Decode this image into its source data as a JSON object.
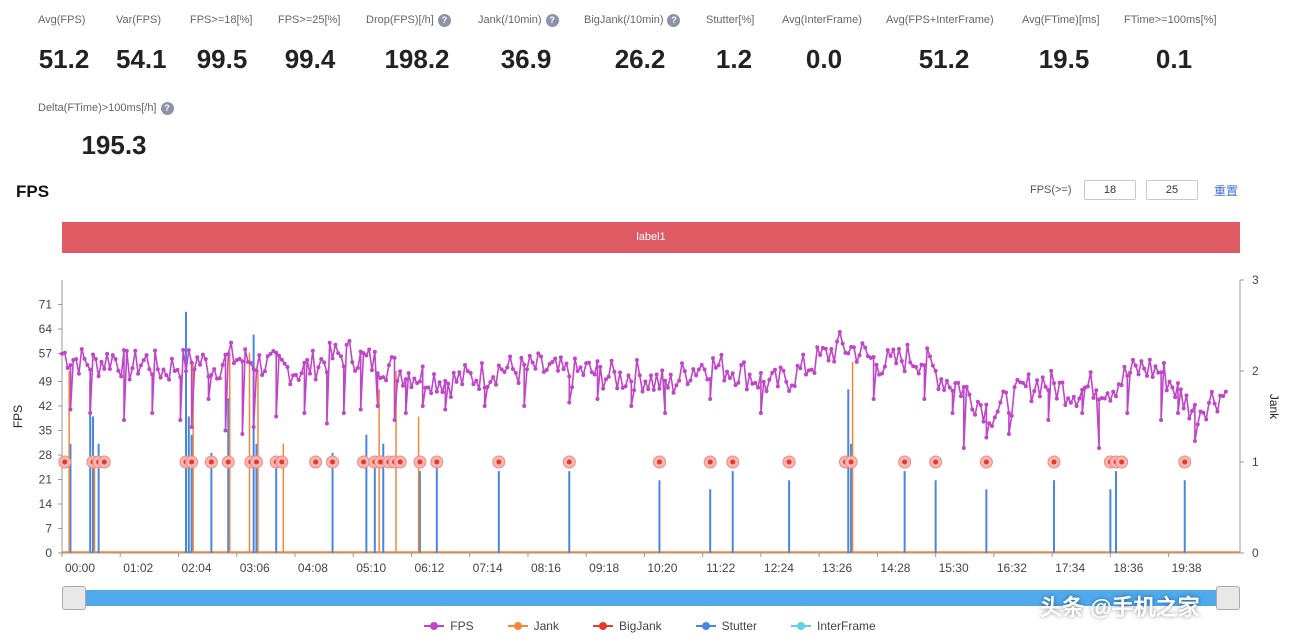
{
  "metrics": [
    {
      "label": "Avg(FPS)",
      "value": "51.2",
      "help": false
    },
    {
      "label": "Var(FPS)",
      "value": "54.1",
      "help": false
    },
    {
      "label": "FPS>=18[%]",
      "value": "99.5",
      "help": false
    },
    {
      "label": "FPS>=25[%]",
      "value": "99.4",
      "help": false
    },
    {
      "label": "Drop(FPS)[/h]",
      "value": "198.2",
      "help": true
    },
    {
      "label": "Jank(/10min)",
      "value": "36.9",
      "help": true
    },
    {
      "label": "BigJank(/10min)",
      "value": "26.2",
      "help": true
    },
    {
      "label": "Stutter[%]",
      "value": "1.2",
      "help": false
    },
    {
      "label": "Avg(InterFrame)",
      "value": "0.0",
      "help": false
    },
    {
      "label": "Avg(FPS+InterFrame)",
      "value": "51.2",
      "help": false
    },
    {
      "label": "Avg(FTime)[ms]",
      "value": "19.5",
      "help": false
    },
    {
      "label": "FTime>=100ms[%]",
      "value": "0.1",
      "help": false
    },
    {
      "label": "Delta(FTime)>100ms[/h]",
      "value": "195.3",
      "help": true
    }
  ],
  "help_glyph": "?",
  "chart_section": {
    "title": "FPS",
    "threshold_label": "FPS(>=)",
    "threshold_values": [
      "18",
      "25"
    ],
    "reset_label": "重置",
    "label_bar": "label1",
    "watermark": "头条 @手机之家"
  },
  "colors": {
    "fps": "#c046c8",
    "jank": "#f0883c",
    "bigjank": "#e23b2e",
    "stutter": "#4a86e0",
    "interframe": "#5fd0e6",
    "label_bar": "#de5b63",
    "slider": "#4fa9ec"
  },
  "chart_data": {
    "type": "line",
    "title": "FPS",
    "ylabel": "FPS",
    "y2label": "Jank",
    "ylim": [
      0,
      78
    ],
    "y2lim": [
      0,
      3
    ],
    "yticks": [
      0,
      7,
      14,
      21,
      28,
      35,
      42,
      49,
      57,
      64,
      71
    ],
    "y2ticks": [
      0,
      1,
      2,
      3
    ],
    "x_range_minutes": [
      0,
      20.9
    ],
    "x_tick_labels": [
      "00:00",
      "01:02",
      "02:04",
      "03:06",
      "04:08",
      "05:10",
      "06:12",
      "07:14",
      "08:16",
      "09:18",
      "10:20",
      "11:22",
      "12:24",
      "13:26",
      "14:28",
      "15:30",
      "16:32",
      "17:34",
      "18:36",
      "19:38"
    ],
    "x_tick_minutes": [
      0,
      1.033,
      2.067,
      3.1,
      4.133,
      5.167,
      6.2,
      7.233,
      8.267,
      9.3,
      10.333,
      11.367,
      12.4,
      13.433,
      14.467,
      15.5,
      16.533,
      17.567,
      18.6,
      19.633
    ],
    "fps_trend": [
      [
        0.0,
        57
      ],
      [
        0.3,
        55
      ],
      [
        0.6,
        54
      ],
      [
        0.9,
        56
      ],
      [
        1.2,
        53
      ],
      [
        1.5,
        55
      ],
      [
        1.8,
        52
      ],
      [
        2.1,
        54
      ],
      [
        2.4,
        55
      ],
      [
        2.7,
        53
      ],
      [
        3.0,
        56
      ],
      [
        3.3,
        55
      ],
      [
        3.6,
        54
      ],
      [
        3.9,
        53
      ],
      [
        4.2,
        52
      ],
      [
        4.5,
        54
      ],
      [
        4.8,
        56
      ],
      [
        5.1,
        57
      ],
      [
        5.4,
        55
      ],
      [
        5.7,
        54
      ],
      [
        6.0,
        52
      ],
      [
        6.3,
        51
      ],
      [
        6.6,
        50
      ],
      [
        6.9,
        49
      ],
      [
        7.2,
        50
      ],
      [
        7.5,
        51
      ],
      [
        7.8,
        53
      ],
      [
        8.1,
        52
      ],
      [
        8.4,
        53
      ],
      [
        8.7,
        52
      ],
      [
        9.0,
        51
      ],
      [
        9.3,
        52
      ],
      [
        9.6,
        51
      ],
      [
        9.9,
        50
      ],
      [
        10.2,
        51
      ],
      [
        10.5,
        49
      ],
      [
        10.8,
        48
      ],
      [
        11.1,
        52
      ],
      [
        11.4,
        54
      ],
      [
        11.7,
        53
      ],
      [
        12.0,
        52
      ],
      [
        12.3,
        50
      ],
      [
        12.6,
        48
      ],
      [
        12.9,
        50
      ],
      [
        13.2,
        53
      ],
      [
        13.5,
        56
      ],
      [
        13.8,
        59
      ],
      [
        14.1,
        58
      ],
      [
        14.4,
        55
      ],
      [
        14.7,
        54
      ],
      [
        15.0,
        56
      ],
      [
        15.3,
        55
      ],
      [
        15.6,
        50
      ],
      [
        15.9,
        48
      ],
      [
        16.2,
        44
      ],
      [
        16.5,
        40
      ],
      [
        16.8,
        43
      ],
      [
        17.1,
        47
      ],
      [
        17.4,
        49
      ],
      [
        17.7,
        47
      ],
      [
        18.0,
        46
      ],
      [
        18.3,
        48
      ],
      [
        18.6,
        47
      ],
      [
        18.9,
        51
      ],
      [
        19.2,
        53
      ],
      [
        19.5,
        52
      ],
      [
        19.8,
        46
      ],
      [
        20.1,
        40
      ],
      [
        20.4,
        44
      ],
      [
        20.7,
        46
      ]
    ],
    "fps_dips": [
      [
        0.15,
        41
      ],
      [
        0.5,
        40
      ],
      [
        1.1,
        38
      ],
      [
        1.6,
        40
      ],
      [
        2.1,
        38
      ],
      [
        2.3,
        36
      ],
      [
        2.6,
        44
      ],
      [
        2.9,
        35
      ],
      [
        3.2,
        34
      ],
      [
        3.4,
        36
      ],
      [
        3.8,
        39
      ],
      [
        4.3,
        40
      ],
      [
        4.7,
        37
      ],
      [
        5.0,
        40
      ],
      [
        5.3,
        41
      ],
      [
        5.6,
        42
      ],
      [
        5.9,
        38
      ],
      [
        6.1,
        40
      ],
      [
        6.4,
        42
      ],
      [
        6.8,
        41
      ],
      [
        7.5,
        42
      ],
      [
        8.2,
        42
      ],
      [
        9.0,
        43
      ],
      [
        9.5,
        44
      ],
      [
        10.1,
        42
      ],
      [
        10.7,
        40
      ],
      [
        11.5,
        44
      ],
      [
        12.4,
        40
      ],
      [
        14.4,
        44
      ],
      [
        15.3,
        44
      ],
      [
        15.8,
        40
      ],
      [
        16.0,
        30
      ],
      [
        16.4,
        33
      ],
      [
        16.8,
        34
      ],
      [
        17.5,
        38
      ],
      [
        18.1,
        40
      ],
      [
        18.4,
        30
      ],
      [
        18.9,
        40
      ],
      [
        19.5,
        38
      ],
      [
        19.8,
        40
      ],
      [
        20.1,
        32
      ]
    ],
    "markers_at_1": [
      0.05,
      0.55,
      0.65,
      0.75,
      2.2,
      2.3,
      2.65,
      2.95,
      3.35,
      3.45,
      3.8,
      3.9,
      4.5,
      4.8,
      5.35,
      5.55,
      5.65,
      5.8,
      5.9,
      6.0,
      6.35,
      6.65,
      7.75,
      9.0,
      10.6,
      11.5,
      11.9,
      12.9,
      13.9,
      14.0,
      14.95,
      15.5,
      16.4,
      17.6,
      18.6,
      18.7,
      18.8,
      19.92
    ],
    "stutter_spikes": [
      [
        0.15,
        1.2
      ],
      [
        0.5,
        1.9
      ],
      [
        0.55,
        1.5
      ],
      [
        0.65,
        1.2
      ],
      [
        2.2,
        2.65
      ],
      [
        2.25,
        1.5
      ],
      [
        2.3,
        1.3
      ],
      [
        2.65,
        1.1
      ],
      [
        2.95,
        1.7
      ],
      [
        3.4,
        2.4
      ],
      [
        3.45,
        1.2
      ],
      [
        3.8,
        1.0
      ],
      [
        4.8,
        1.1
      ],
      [
        5.4,
        1.3
      ],
      [
        5.55,
        1.0
      ],
      [
        5.7,
        1.2
      ],
      [
        6.35,
        0.9
      ],
      [
        6.65,
        1.0
      ],
      [
        7.75,
        0.9
      ],
      [
        9.0,
        0.9
      ],
      [
        10.6,
        0.8
      ],
      [
        11.5,
        0.7
      ],
      [
        11.9,
        0.9
      ],
      [
        12.9,
        0.8
      ],
      [
        13.95,
        1.8
      ],
      [
        14.0,
        1.2
      ],
      [
        14.95,
        0.9
      ],
      [
        15.5,
        0.8
      ],
      [
        16.4,
        0.7
      ],
      [
        17.6,
        0.8
      ],
      [
        18.6,
        0.7
      ],
      [
        18.7,
        0.9
      ],
      [
        19.92,
        0.8
      ]
    ],
    "jank_spikes": [
      [
        0.1,
        2.0
      ],
      [
        0.55,
        1.0
      ],
      [
        2.3,
        2.1
      ],
      [
        2.95,
        2.2
      ],
      [
        3.3,
        2.2
      ],
      [
        3.45,
        2.0
      ],
      [
        3.9,
        1.2
      ],
      [
        5.6,
        1.8
      ],
      [
        5.9,
        2.0
      ],
      [
        6.3,
        1.5
      ],
      [
        14.0,
        2.1
      ]
    ],
    "series_names": [
      "FPS",
      "Jank",
      "BigJank",
      "Stutter",
      "InterFrame"
    ]
  }
}
